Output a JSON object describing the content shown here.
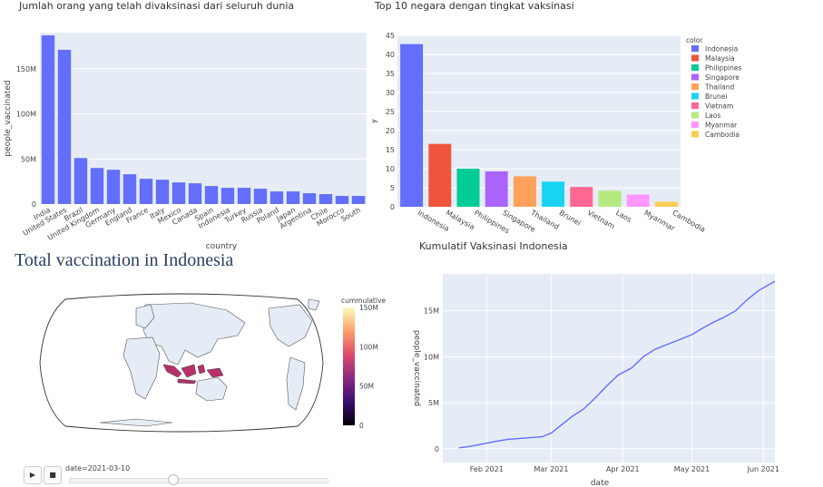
{
  "chart_data": [
    {
      "type": "bar",
      "title": "Jumlah orang yang telah divaksinasi dari seluruh dunia",
      "xlabel": "country",
      "ylabel": "people_vaccinated",
      "ylim": [
        0,
        190000000
      ],
      "yticks": [
        0,
        50000000,
        100000000,
        150000000
      ],
      "ytick_labels": [
        "0",
        "50M",
        "100M",
        "150M"
      ],
      "categories": [
        "India",
        "United States",
        "Brazil",
        "United Kingdom",
        "Germany",
        "England",
        "France",
        "Italy",
        "Mexico",
        "Canada",
        "Spain",
        "Indonesia",
        "Turkey",
        "Russia",
        "Poland",
        "Japan",
        "Argentina",
        "Chile",
        "Morocco",
        "South"
      ],
      "values": [
        187000000,
        171000000,
        51000000,
        40000000,
        38000000,
        33000000,
        28000000,
        27000000,
        24000000,
        23000000,
        20000000,
        18000000,
        18000000,
        17000000,
        14000000,
        14000000,
        12000000,
        11000000,
        9000000,
        9000000
      ],
      "color": "#636efa",
      "grid": true
    },
    {
      "type": "bar",
      "title": "Top 10 negara dengan tingkat vaksinasi",
      "xlabel": "",
      "ylabel": "y",
      "ylim": [
        0,
        45
      ],
      "yticks": [
        0,
        5,
        10,
        15,
        20,
        25,
        30,
        35,
        40,
        45
      ],
      "legend_title": "color",
      "legend_position": "right",
      "categories": [
        "Indonesia",
        "Malaysia",
        "Philippines",
        "Singapore",
        "Thailand",
        "Brunei",
        "Vietnam",
        "Laos",
        "Myanmar",
        "Cambodia"
      ],
      "values": [
        42.7,
        16.5,
        10,
        9.3,
        8,
        6.6,
        5.2,
        4.2,
        3.2,
        1.3
      ],
      "colors": [
        "#636efa",
        "#ef553b",
        "#00cc96",
        "#ab63fa",
        "#ffa15a",
        "#19d3f3",
        "#ff6692",
        "#b6e880",
        "#ff97ff",
        "#fecb52"
      ],
      "grid": true
    },
    {
      "type": "map",
      "title": "Total vaccination in Indonesia",
      "colorbar_title": "cummulative",
      "colorbar_ticks": [
        0,
        50000000,
        100000000,
        150000000
      ],
      "colorbar_tick_labels": [
        "0",
        "50M",
        "100M",
        "150M"
      ],
      "highlight_region": "Indonesia",
      "highlight_color": "#b7306a",
      "animation": {
        "play_label": "▶",
        "stop_label": "■",
        "current_label": "date=2021-03-10",
        "position": 0.4
      }
    },
    {
      "type": "line",
      "title": "Kumulatif Vaksinasi Indonesia",
      "xlabel": "date",
      "ylabel": "people_vaccinated",
      "ylim": [
        -1500000,
        19000000
      ],
      "yticks": [
        0,
        5000000,
        10000000,
        15000000
      ],
      "ytick_labels": [
        "0",
        "5M",
        "10M",
        "15M"
      ],
      "xlim": [
        "2021-01-13",
        "2021-06-06"
      ],
      "xticks": [
        "2021-02-01",
        "2021-03-01",
        "2021-04-01",
        "2021-05-01",
        "2021-06-01"
      ],
      "xtick_labels": [
        "Feb 2021",
        "Mar 2021",
        "Apr 2021",
        "May 2021",
        "Jun 2021"
      ],
      "x": [
        "2021-01-20",
        "2021-01-25",
        "2021-01-30",
        "2021-02-05",
        "2021-02-10",
        "2021-02-15",
        "2021-02-20",
        "2021-02-25",
        "2021-03-01",
        "2021-03-05",
        "2021-03-10",
        "2021-03-15",
        "2021-03-20",
        "2021-03-25",
        "2021-03-30",
        "2021-04-05",
        "2021-04-10",
        "2021-04-15",
        "2021-04-20",
        "2021-04-25",
        "2021-05-01",
        "2021-05-05",
        "2021-05-10",
        "2021-05-15",
        "2021-05-20",
        "2021-05-25",
        "2021-05-30",
        "2021-06-06"
      ],
      "y": [
        100000,
        250000,
        500000,
        800000,
        1000000,
        1100000,
        1200000,
        1300000,
        1700000,
        2500000,
        3500000,
        4300000,
        5500000,
        6800000,
        8000000,
        8800000,
        10000000,
        10800000,
        11300000,
        11800000,
        12400000,
        13000000,
        13700000,
        14300000,
        15000000,
        16200000,
        17200000,
        18200000
      ],
      "color": "#636efa",
      "grid": true
    }
  ]
}
